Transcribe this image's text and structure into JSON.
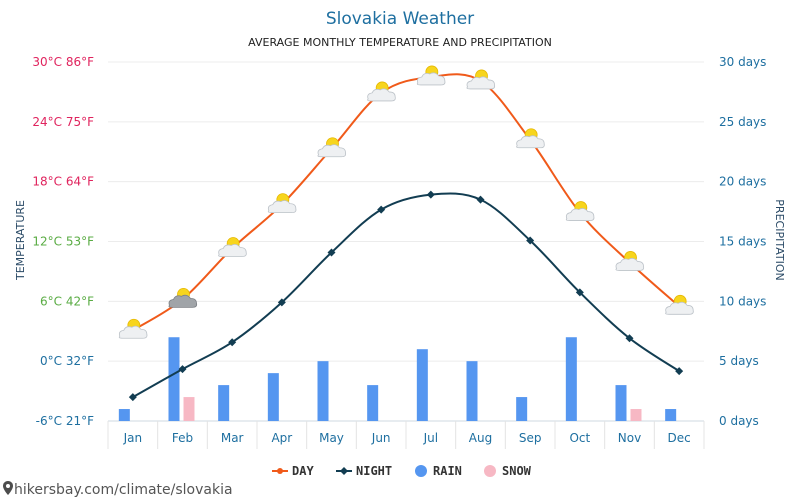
{
  "chart_data": {
    "type": "line",
    "title": "Slovakia Weather",
    "subtitle": "AVERAGE MONTHLY TEMPERATURE AND PRECIPITATION",
    "ylabel": "TEMPERATURE",
    "y2label": "PRECIPITATION",
    "categories": [
      "Jan",
      "Feb",
      "Mar",
      "Apr",
      "May",
      "Jun",
      "Jul",
      "Aug",
      "Sep",
      "Oct",
      "Nov",
      "Dec"
    ],
    "ylim": [
      -6,
      30
    ],
    "y2lim": [
      0,
      30
    ],
    "y_ticks": [
      {
        "value": 30,
        "label": "30°C 86°F",
        "color": "#e0245e"
      },
      {
        "value": 24,
        "label": "24°C 75°F",
        "color": "#e0245e"
      },
      {
        "value": 18,
        "label": "18°C 64°F",
        "color": "#e0245e"
      },
      {
        "value": 12,
        "label": "12°C 53°F",
        "color": "#5aac44"
      },
      {
        "value": 6,
        "label": "6°C 42°F",
        "color": "#5aac44"
      },
      {
        "value": 0,
        "label": "0°C 32°F",
        "color": "#1e6fa0"
      },
      {
        "value": -6,
        "label": "-6°C 21°F",
        "color": "#1e6fa0"
      }
    ],
    "y2_ticks": [
      {
        "value": 30,
        "label": "30 days"
      },
      {
        "value": 25,
        "label": "25 days"
      },
      {
        "value": 20,
        "label": "20 days"
      },
      {
        "value": 15,
        "label": "15 days"
      },
      {
        "value": 10,
        "label": "10 days"
      },
      {
        "value": 5,
        "label": "5 days"
      },
      {
        "value": 0,
        "label": "0 days"
      }
    ],
    "series": [
      {
        "name": "DAY",
        "axis": "temperature",
        "color": "#f05a1a",
        "values": [
          3.1,
          6.2,
          11.3,
          15.7,
          21.3,
          26.9,
          28.5,
          28.1,
          22.2,
          14.9,
          9.9,
          5.5
        ]
      },
      {
        "name": "NIGHT",
        "axis": "temperature",
        "color": "#123d52",
        "values": [
          -3.6,
          -0.8,
          1.9,
          5.9,
          10.9,
          15.2,
          16.7,
          16.2,
          12.1,
          6.9,
          2.3,
          -1.0
        ]
      },
      {
        "name": "RAIN",
        "axis": "precipitation",
        "color": "#5596f0",
        "values": [
          1,
          7,
          3,
          4,
          5,
          3,
          6,
          5,
          2,
          7,
          3,
          1
        ]
      },
      {
        "name": "SNOW",
        "axis": "precipitation",
        "color": "#f7b8c4",
        "values": [
          0,
          2,
          0,
          0,
          0,
          0,
          0,
          0,
          0,
          0,
          1,
          0
        ]
      }
    ],
    "weather_icons": [
      "sun-cloud",
      "cloud-sun-rain",
      "sun-cloud",
      "sun-cloud",
      "sun-cloud",
      "sun-cloud",
      "sun-cloud",
      "sun-cloud",
      "sun-cloud",
      "sun-cloud",
      "sun-cloud",
      "sun-cloud"
    ],
    "legend": [
      {
        "label": "DAY",
        "color": "#f05a1a",
        "marker": "line-dot"
      },
      {
        "label": "NIGHT",
        "color": "#123d52",
        "marker": "line-diamond"
      },
      {
        "label": "RAIN",
        "color": "#5596f0",
        "marker": "circle"
      },
      {
        "label": "SNOW",
        "color": "#f7b8c4",
        "marker": "circle"
      }
    ],
    "legend_position": "bottom-center",
    "grid": true
  },
  "footer": {
    "watermark": "hikersbay.com/climate/slovakia"
  }
}
